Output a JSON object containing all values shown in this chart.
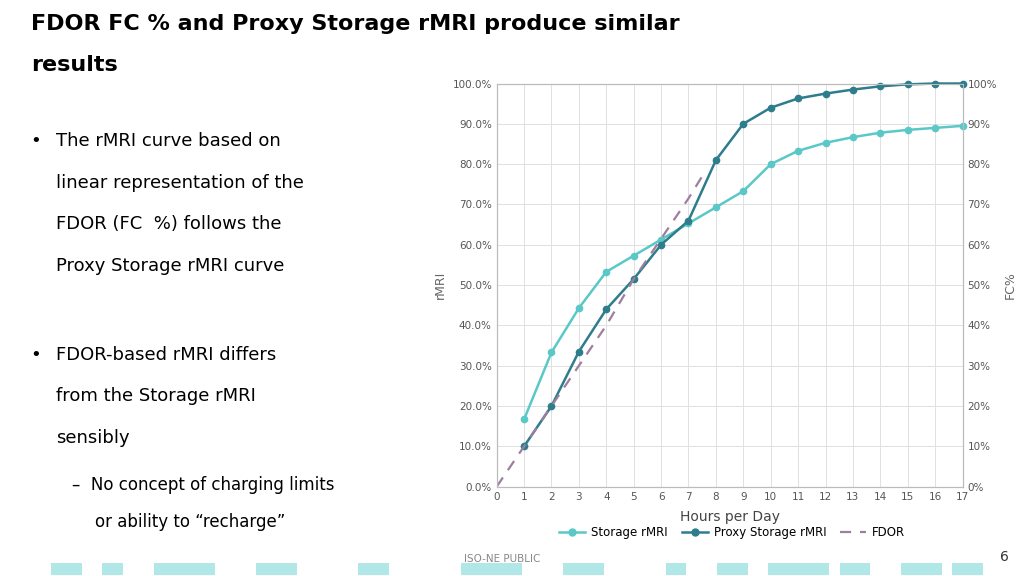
{
  "title_line1": "FDOR FC % and Proxy Storage rMRI produce similar",
  "title_line2": "results",
  "bullet1_line1": "The rMRI curve based on",
  "bullet1_line2": "linear representation of the",
  "bullet1_line3": "FDOR (FC  %) follows the",
  "bullet1_line4": "Proxy Storage rMRI curve",
  "bullet2_line1": "FDOR-based rMRI differs",
  "bullet2_line2": "from the Storage rMRI",
  "bullet2_line3": "sensibly",
  "sub_bullet1": "No concept of charging limits",
  "sub_bullet2": "or ability to “recharge”",
  "xlabel": "Hours per Day",
  "ylabel_left": "rMRI",
  "ylabel_right": "FC%",
  "x_ticks": [
    0,
    1,
    2,
    3,
    4,
    5,
    6,
    7,
    8,
    9,
    10,
    11,
    12,
    13,
    14,
    15,
    16,
    17
  ],
  "y_ticks_left_labels": [
    "0.0%",
    "10.0%",
    "20.0%",
    "30.0%",
    "40.0%",
    "50.0%",
    "60.0%",
    "70.0%",
    "80.0%",
    "90.0%",
    "100.0%"
  ],
  "y_ticks_right_labels": [
    "0%",
    "10%",
    "20%",
    "30%",
    "40%",
    "50%",
    "60%",
    "70%",
    "80%",
    "90%",
    "100%"
  ],
  "storage_rmri_x": [
    1,
    2,
    3,
    4,
    5,
    6,
    7,
    8,
    9,
    10,
    11,
    12,
    13,
    14,
    15,
    16,
    17
  ],
  "storage_rmri_y": [
    0.167,
    0.333,
    0.443,
    0.533,
    0.573,
    0.613,
    0.653,
    0.693,
    0.733,
    0.8,
    0.833,
    0.853,
    0.867,
    0.878,
    0.885,
    0.89,
    0.895
  ],
  "proxy_rmri_x": [
    1,
    2,
    3,
    4,
    5,
    6,
    7,
    8,
    9,
    10,
    11,
    12,
    13,
    14,
    15,
    16,
    17
  ],
  "proxy_rmri_y": [
    0.1,
    0.2,
    0.335,
    0.44,
    0.515,
    0.6,
    0.66,
    0.81,
    0.9,
    0.94,
    0.963,
    0.975,
    0.985,
    0.993,
    0.998,
    1.0,
    1.0
  ],
  "fdor_x": [
    0,
    1,
    2,
    3,
    4,
    5,
    6,
    7,
    7.5
  ],
  "fdor_y": [
    0.0,
    0.1,
    0.2,
    0.3,
    0.4,
    0.515,
    0.615,
    0.715,
    0.77
  ],
  "storage_color": "#5BC8C8",
  "proxy_color": "#2E7D8C",
  "fdor_color": "#9E7EA0",
  "background_color": "#ffffff",
  "grid_color": "#E0E0E0",
  "legend_labels": [
    "Storage rMRI",
    "Proxy Storage rMRI",
    "FDOR"
  ],
  "footer_text": "ISO-NE PUBLIC",
  "slide_number": "6",
  "bottom_bar_color": "#5BC8C8",
  "bottom_bar_height": 0.025
}
